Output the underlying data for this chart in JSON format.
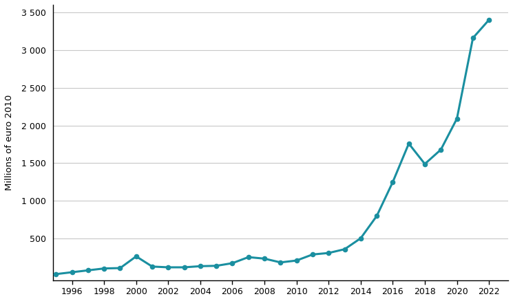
{
  "years": [
    1995,
    1996,
    1997,
    1998,
    1999,
    2000,
    2001,
    2002,
    2003,
    2004,
    2005,
    2006,
    2007,
    2008,
    2009,
    2010,
    2011,
    2012,
    2013,
    2014,
    2015,
    2016,
    2017,
    2018,
    2019,
    2020,
    2021,
    2022
  ],
  "values": [
    30,
    55,
    80,
    105,
    110,
    265,
    130,
    120,
    120,
    135,
    140,
    175,
    255,
    235,
    185,
    210,
    290,
    310,
    360,
    505,
    800,
    1250,
    1760,
    1490,
    1680,
    2090,
    3160,
    3400
  ],
  "line_color": "#1a8fa0",
  "marker_color": "#1a8fa0",
  "background_color": "#ffffff",
  "grid_color": "#c8c8c8",
  "ylabel": "Millions of euro 2010",
  "yticks": [
    500,
    1000,
    1500,
    2000,
    2500,
    3000,
    3500
  ],
  "ytick_labels": [
    "500",
    "1 000",
    "1 500",
    "2 000",
    "2 500",
    "3 000",
    "3 500"
  ],
  "xtick_start": 1996,
  "xtick_end": 2022,
  "xtick_step": 2,
  "ylim": [
    -50,
    3600
  ],
  "xlim": [
    1994.8,
    2023.2
  ]
}
